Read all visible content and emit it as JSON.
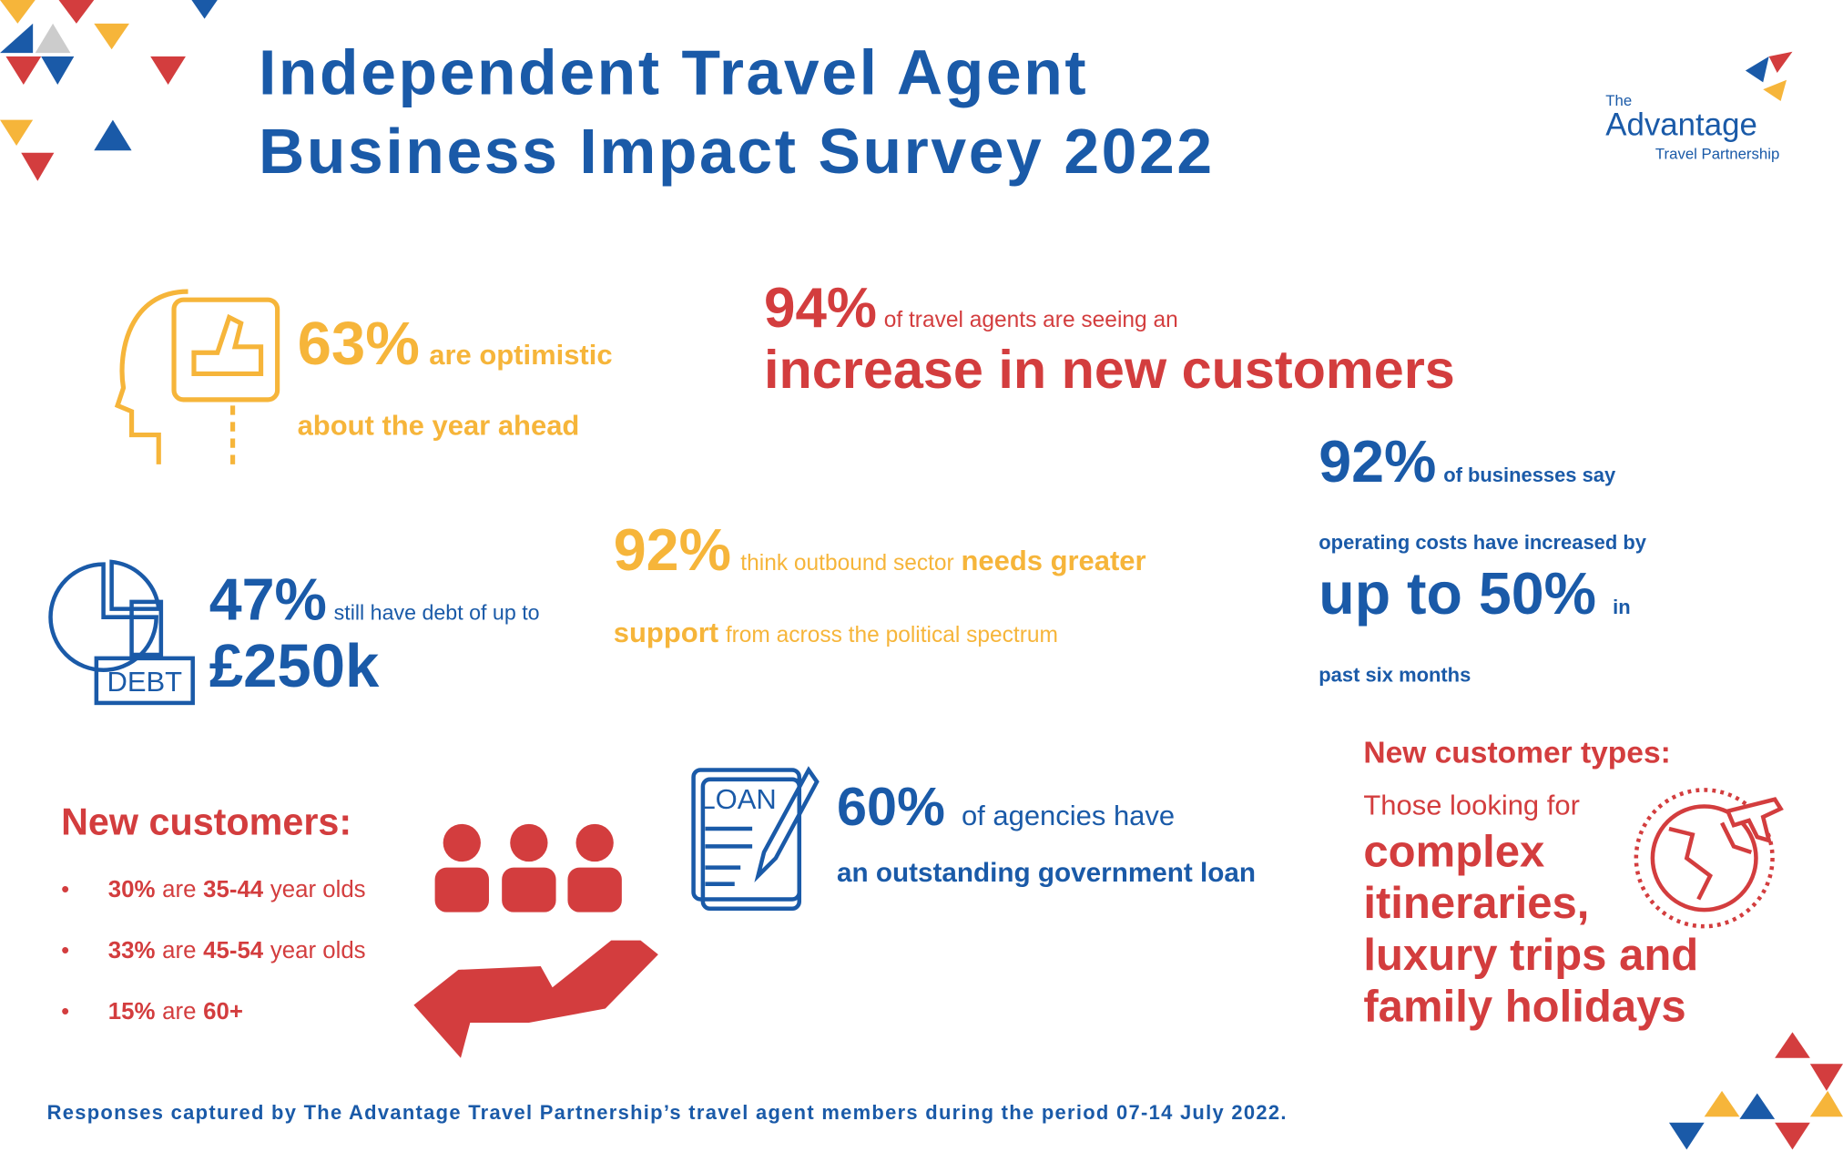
{
  "header": {
    "title_lines": [
      "Independent Travel Agent",
      "Business Impact Survey 2022"
    ]
  },
  "logo": {
    "the": "The",
    "name": "Advantage",
    "sub": "Travel Partnership"
  },
  "optimistic": {
    "figure": "63%",
    "text1": "are optimistic",
    "text2": "about the year ahead"
  },
  "increase": {
    "figure": "94%",
    "text": "of travel agents are seeing an",
    "highlight": "increase in new customers"
  },
  "costs": {
    "figure": "92%",
    "text1": "of businesses say",
    "text2": "operating costs have increased by",
    "highlight": "up to 50%",
    "text3": "in",
    "text4": "past six months"
  },
  "support": {
    "figure": "92%",
    "text1": "think outbound sector",
    "bold1": "needs greater",
    "bold2": "support",
    "text2": "from across the political spectrum"
  },
  "debt": {
    "figure": "47%",
    "text": "still have debt of up to",
    "highlight": "£250k",
    "icon_label": "DEBT"
  },
  "new_customers": {
    "heading": "New customers:",
    "items": [
      {
        "pct": "30%",
        "mid": "are",
        "age": "35-44",
        "tail": "year olds"
      },
      {
        "pct": "33%",
        "mid": "are",
        "age": "45-54",
        "tail": "year olds"
      },
      {
        "pct": "15%",
        "mid": "are",
        "age": "60+"
      }
    ]
  },
  "loan": {
    "figure": "60%",
    "text": "of agencies have",
    "highlight": "an outstanding government loan",
    "icon_label": "LOAN"
  },
  "customer_types": {
    "heading": "New customer types:",
    "intro": "Those looking for",
    "lines": [
      "complex",
      "itineraries,",
      "luxury trips and",
      "family holidays"
    ]
  },
  "footer": "Responses captured by The Advantage Travel Partnership’s travel agent members during the period 07-14 July 2022."
}
